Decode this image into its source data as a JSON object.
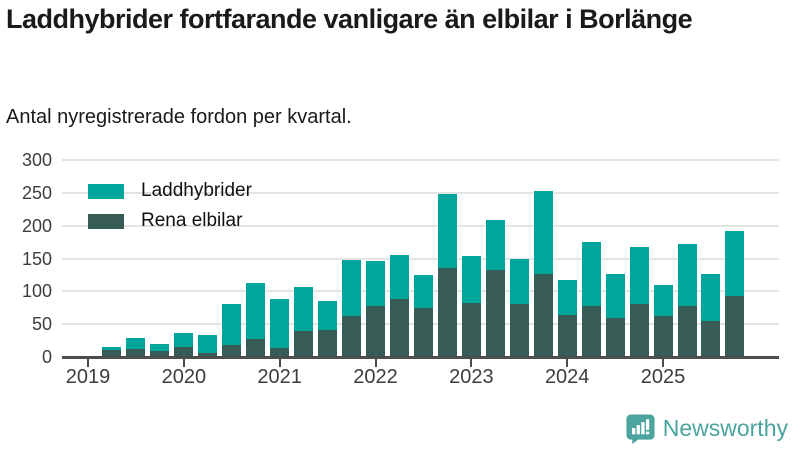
{
  "title": "Laddhybrider fortfarande vanligare än elbilar i Borlänge",
  "subtitle": "Antal nyregistrerade fordon per kvartal.",
  "legend": [
    {
      "label": "Laddhybrider",
      "color": "#00a69c"
    },
    {
      "label": "Rena elbilar",
      "color": "#365c55"
    }
  ],
  "footer": {
    "brand": "Newsworthy"
  },
  "colors": {
    "laddhybrider": "#00a69c",
    "elbilar": "#365c55",
    "gridline": "#e4e4e4",
    "axis": "#4d4d4d",
    "brand": "#4ba49d"
  },
  "chart_data": {
    "type": "bar",
    "stacked": true,
    "title": "Laddhybrider fortfarande vanligare än elbilar i Borlänge",
    "subtitle": "Antal nyregistrerade fordon per kvartal.",
    "categories": [
      "2019 Q1",
      "2019 Q2",
      "2019 Q3",
      "2019 Q4",
      "2020 Q1",
      "2020 Q2",
      "2020 Q3",
      "2020 Q4",
      "2021 Q1",
      "2021 Q2",
      "2021 Q3",
      "2021 Q4",
      "2022 Q1",
      "2022 Q2",
      "2022 Q3",
      "2022 Q4",
      "2023 Q1",
      "2023 Q2",
      "2023 Q3",
      "2023 Q4",
      "2024 Q1",
      "2024 Q2",
      "2024 Q3",
      "2024 Q4",
      "2025 Q1",
      "2025 Q2",
      "2025 Q3",
      "2025 Q4"
    ],
    "series": [
      {
        "name": "Rena elbilar",
        "color": "#365c55",
        "stack_position": "bottom",
        "values": [
          0,
          10,
          12,
          9,
          16,
          6,
          18,
          27,
          13,
          40,
          41,
          62,
          77,
          88,
          74,
          136,
          83,
          133,
          80,
          127,
          64,
          78,
          60,
          81,
          62,
          78,
          55,
          93
        ]
      },
      {
        "name": "Laddhybrider",
        "color": "#00a69c",
        "stack_position": "top",
        "values": [
          0,
          6,
          17,
          11,
          20,
          27,
          63,
          85,
          76,
          66,
          45,
          86,
          69,
          67,
          51,
          112,
          71,
          76,
          70,
          126,
          54,
          97,
          66,
          86,
          48,
          94,
          71,
          99
        ]
      }
    ],
    "totals": [
      0,
      16,
      29,
      20,
      36,
      33,
      81,
      112,
      89,
      106,
      86,
      148,
      146,
      155,
      125,
      248,
      154,
      209,
      150,
      253,
      118,
      175,
      126,
      167,
      110,
      172,
      126,
      192
    ],
    "ylim": [
      0,
      300
    ],
    "yticks": [
      0,
      50,
      100,
      150,
      200,
      250,
      300
    ],
    "xtick_years": [
      "2019",
      "2020",
      "2021",
      "2022",
      "2023",
      "2024",
      "2025"
    ],
    "grid": true,
    "legend_position": "top-left"
  }
}
